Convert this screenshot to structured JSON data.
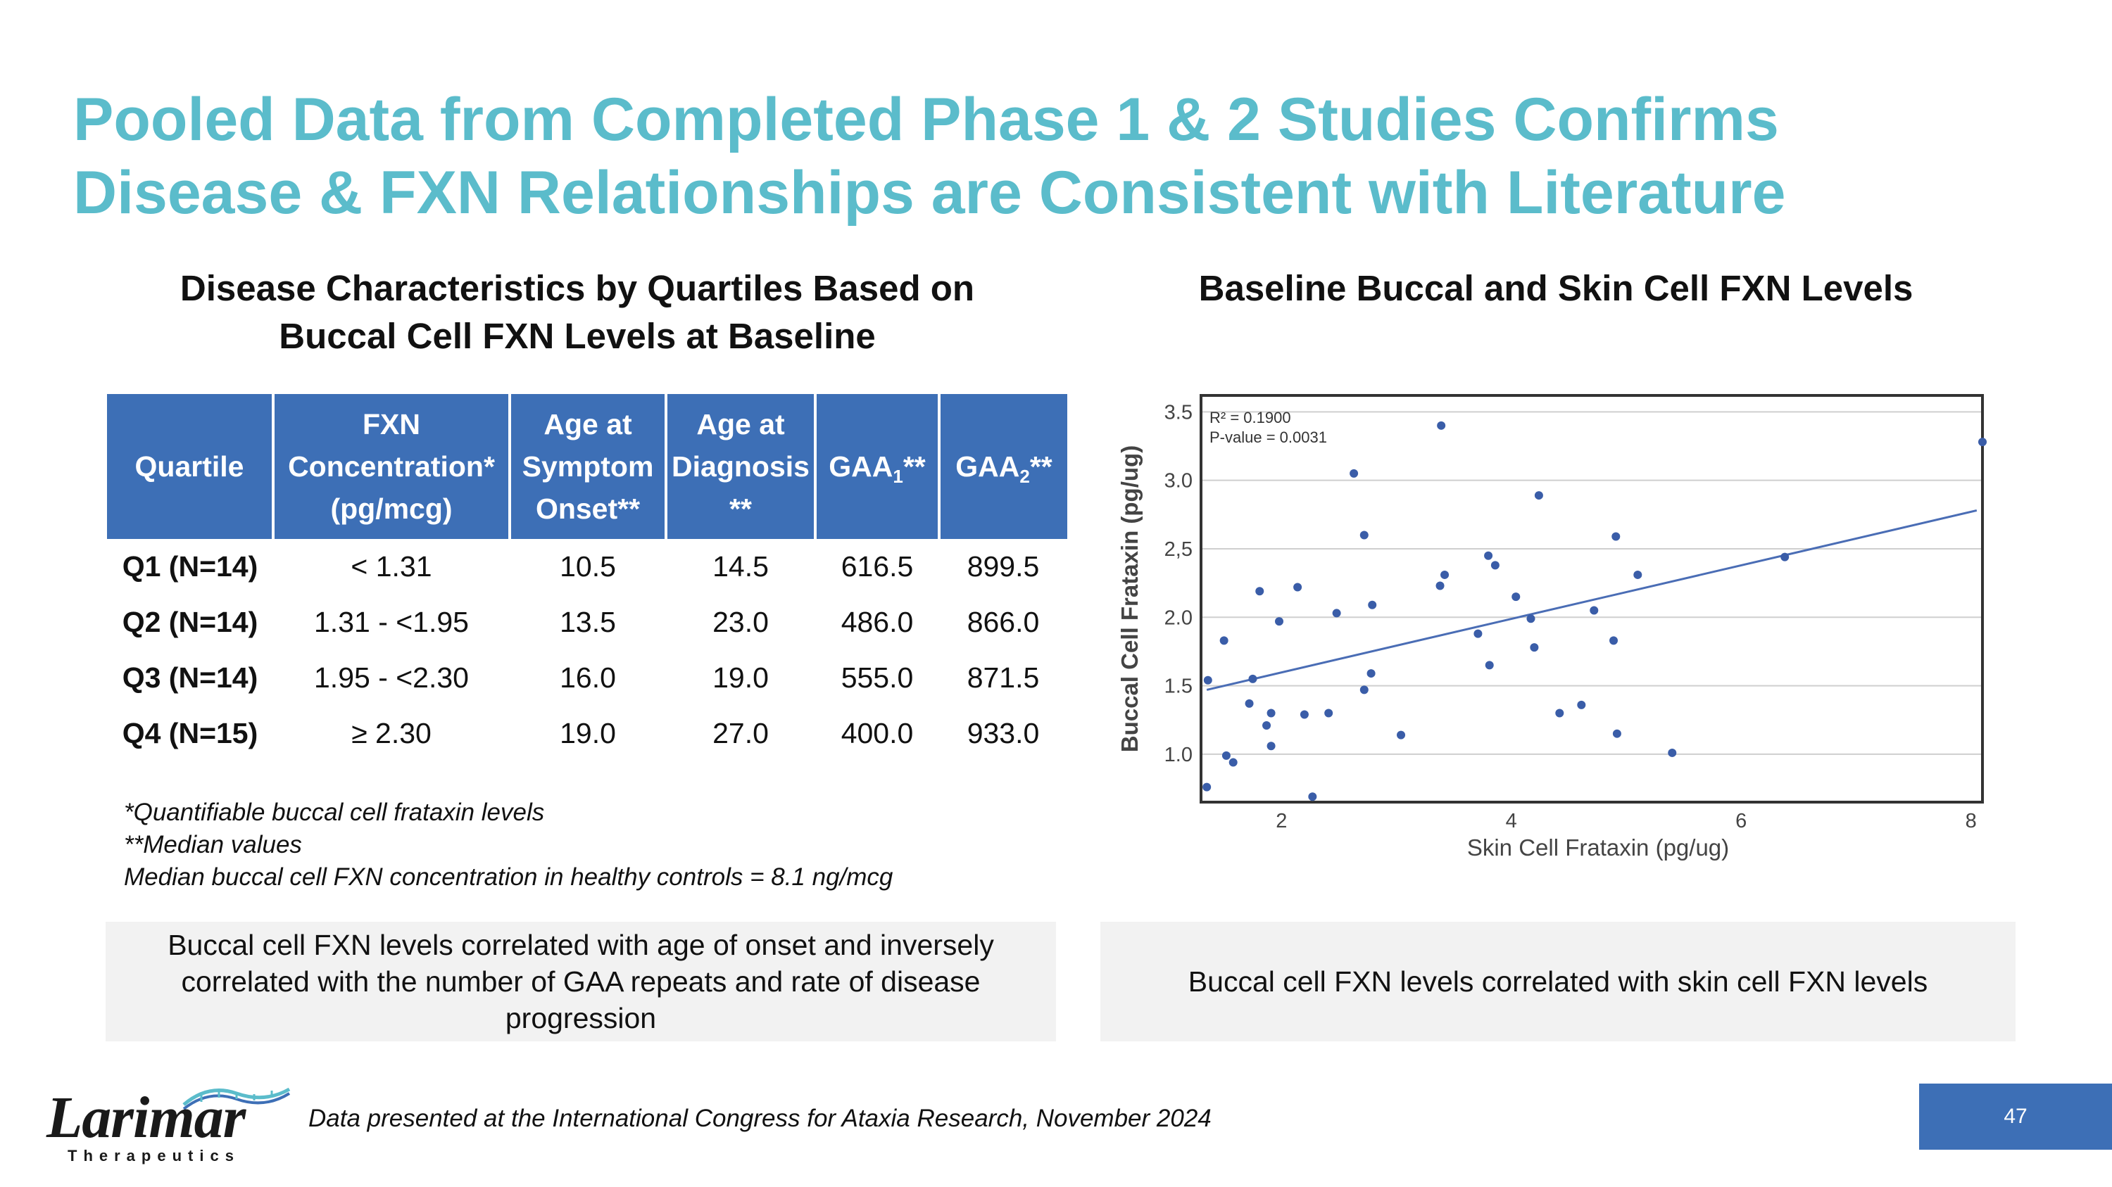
{
  "title_lines": [
    "Pooled Data from Completed Phase 1 & 2 Studies Confirms",
    "Disease & FXN Relationships are Consistent with Literature"
  ],
  "left_section": {
    "title_lines": [
      "Disease Characteristics by Quartiles Based on",
      "Buccal Cell FXN Levels at Baseline"
    ],
    "table": {
      "headers": {
        "quartile": "Quartile",
        "fxn_lines": [
          "FXN",
          "Concentration*",
          "(pg/mcg)"
        ],
        "onset_lines": [
          "Age at",
          "Symptom",
          "Onset**"
        ],
        "diagnosis_lines": [
          "Age at",
          "Diagnosis",
          "**"
        ],
        "gaa1": {
          "base": "GAA",
          "sub": "1",
          "suffix": "**"
        },
        "gaa2": {
          "base": "GAA",
          "sub": "2",
          "suffix": "**"
        }
      },
      "rows": [
        {
          "quartile": "Q1 (N=14)",
          "fxn": "< 1.31",
          "onset": "10.5",
          "diagnosis": "14.5",
          "gaa1": "616.5",
          "gaa2": "899.5"
        },
        {
          "quartile": "Q2 (N=14)",
          "fxn": "1.31 - <1.95",
          "onset": "13.5",
          "diagnosis": "23.0",
          "gaa1": "486.0",
          "gaa2": "866.0"
        },
        {
          "quartile": "Q3 (N=14)",
          "fxn": "1.95 - <2.30",
          "onset": "16.0",
          "diagnosis": "19.0",
          "gaa1": "555.0",
          "gaa2": "871.5"
        },
        {
          "quartile": "Q4 (N=15)",
          "fxn": "≥ 2.30",
          "onset": "19.0",
          "diagnosis": "27.0",
          "gaa1": "400.0",
          "gaa2": "933.0"
        }
      ]
    },
    "notes": [
      "*Quantifiable buccal cell frataxin levels",
      "**Median values",
      "Median buccal cell FXN concentration in healthy controls = 8.1 ng/mcg"
    ],
    "callout": "Buccal cell FXN levels correlated with age of onset and inversely correlated with the number of GAA repeats and rate of disease progression"
  },
  "right_section": {
    "title": "Baseline Buccal and Skin Cell FXN Levels",
    "callout": "Buccal cell FXN levels correlated with skin cell FXN levels"
  },
  "chart_data": {
    "type": "scatter",
    "xlabel": "Skin Cell Frataxin (pg/ug)",
    "ylabel": "Buccal Cell Frataxin (pg/ug)",
    "xlim": [
      1.3,
      8.1
    ],
    "ylim": [
      0.65,
      3.62
    ],
    "x_ticks": [
      2,
      4,
      6,
      8
    ],
    "x_tick_labels": [
      "2",
      "4",
      "6",
      "8"
    ],
    "y_ticks": [
      1.0,
      1.5,
      2.0,
      2.5,
      3.0,
      3.5
    ],
    "y_tick_labels": [
      "1.0",
      "1.5",
      "2.0",
      "2,5",
      "3.0",
      "3.5"
    ],
    "grid": "horizontal",
    "annotations": [
      "R² = 0.1900",
      "P-value = 0.0031"
    ],
    "colors": {
      "point": "#3a5da8",
      "line": "#4a6db5"
    },
    "trendline": {
      "x": [
        1.35,
        8.05
      ],
      "y": [
        1.47,
        2.78
      ]
    },
    "points": [
      [
        1.35,
        0.76
      ],
      [
        1.36,
        1.54
      ],
      [
        1.5,
        1.83
      ],
      [
        1.52,
        0.99
      ],
      [
        1.58,
        0.94
      ],
      [
        1.72,
        1.37
      ],
      [
        1.75,
        1.55
      ],
      [
        1.81,
        2.19
      ],
      [
        1.87,
        1.21
      ],
      [
        1.91,
        1.3
      ],
      [
        1.91,
        1.06
      ],
      [
        1.98,
        1.97
      ],
      [
        2.14,
        2.22
      ],
      [
        2.2,
        1.29
      ],
      [
        2.27,
        0.69
      ],
      [
        2.41,
        1.3
      ],
      [
        2.48,
        2.03
      ],
      [
        2.63,
        3.05
      ],
      [
        2.72,
        2.6
      ],
      [
        2.72,
        1.47
      ],
      [
        2.78,
        1.59
      ],
      [
        2.79,
        2.09
      ],
      [
        3.04,
        1.14
      ],
      [
        3.38,
        2.23
      ],
      [
        3.39,
        3.4
      ],
      [
        3.42,
        2.31
      ],
      [
        3.71,
        1.88
      ],
      [
        3.8,
        2.45
      ],
      [
        3.81,
        1.65
      ],
      [
        3.86,
        2.38
      ],
      [
        4.04,
        2.15
      ],
      [
        4.17,
        1.99
      ],
      [
        4.2,
        1.78
      ],
      [
        4.24,
        2.89
      ],
      [
        4.42,
        1.3
      ],
      [
        4.61,
        1.36
      ],
      [
        4.72,
        2.05
      ],
      [
        4.89,
        1.83
      ],
      [
        4.91,
        2.59
      ],
      [
        4.92,
        1.15
      ],
      [
        5.1,
        2.31
      ],
      [
        5.4,
        1.01
      ],
      [
        6.38,
        2.44
      ],
      [
        8.1,
        3.28
      ]
    ]
  },
  "logo": {
    "word": "Larimar",
    "sub": "Therapeutics"
  },
  "source": "Data presented at the International Congress for Ataxia Research, November 2024",
  "page_number": "47"
}
